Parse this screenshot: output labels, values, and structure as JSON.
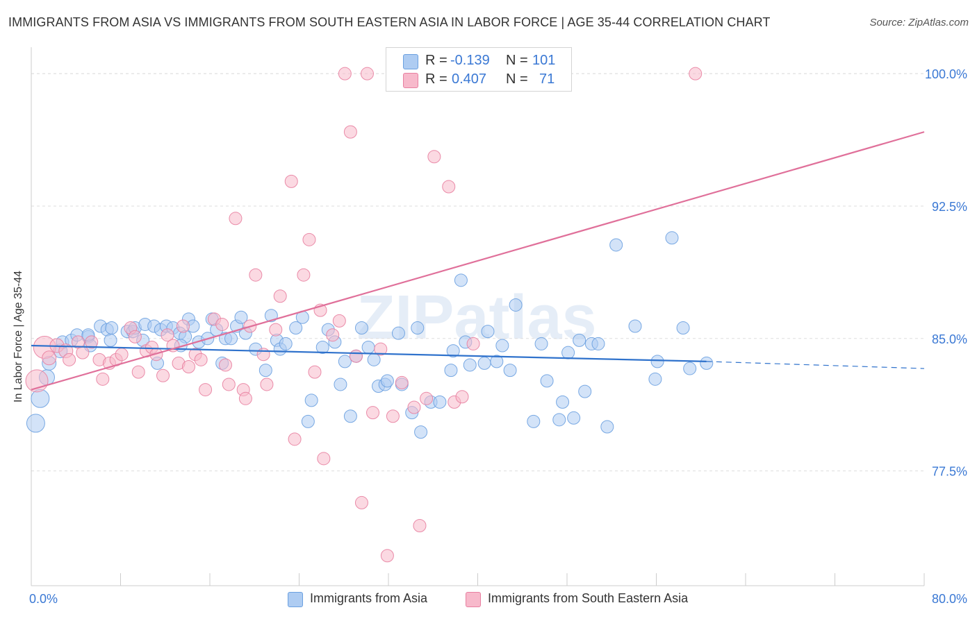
{
  "title": "IMMIGRANTS FROM ASIA VS IMMIGRANTS FROM SOUTH EASTERN ASIA IN LABOR FORCE | AGE 35-44 CORRELATION CHART",
  "source": "Source: ZipAtlas.com",
  "watermark": "ZIPatlas",
  "legend": {
    "rows": [
      {
        "r_label": "R =",
        "r_value": "-0.139",
        "n_label": "N =",
        "n_value": "101",
        "color": "#aeccf2"
      },
      {
        "r_label": "R =",
        "r_value": "0.407",
        "n_label": "N =",
        "n_value": "71",
        "color": "#f7b9cb"
      }
    ]
  },
  "chart_data": {
    "type": "scatter",
    "xlabel": "",
    "ylabel": "In Labor Force | Age 35-44",
    "xlim": [
      0,
      80
    ],
    "ylim": [
      71.0,
      101.5
    ],
    "x_tick_labels": [
      "0.0%",
      "80.0%"
    ],
    "y_ticks": [
      77.5,
      85.0,
      92.5,
      100.0
    ],
    "y_tick_labels": [
      "77.5%",
      "85.0%",
      "92.5%",
      "100.0%"
    ],
    "grid": true,
    "legend_position": "bottom",
    "series": [
      {
        "name": "Immigrants from Asia",
        "color": "#6aa0e0",
        "fill": "#aeccf2",
        "trend": {
          "x_solid": [
            0,
            60.5
          ],
          "y_solid": [
            84.6,
            83.7
          ],
          "x_dashed": [
            60.5,
            80
          ],
          "y_dashed": [
            83.7,
            83.3
          ]
        },
        "points": [
          [
            0.4,
            80.2,
            13
          ],
          [
            0.8,
            81.6,
            13
          ],
          [
            1.4,
            82.8,
            11
          ],
          [
            1.6,
            83.6,
            10
          ],
          [
            2.6,
            84.3,
            10
          ],
          [
            2.8,
            84.8,
            9
          ],
          [
            3.6,
            84.9,
            9
          ],
          [
            4.1,
            85.2,
            9
          ],
          [
            5.1,
            85.1,
            9
          ],
          [
            5.3,
            84.6,
            9
          ],
          [
            6.2,
            85.7,
            9
          ],
          [
            6.8,
            85.5,
            9
          ],
          [
            7.2,
            85.6,
            9
          ],
          [
            8.6,
            85.4,
            9
          ],
          [
            9.1,
            85.4,
            9
          ],
          [
            9.3,
            85.6,
            9
          ],
          [
            10.2,
            85.8,
            9
          ],
          [
            11.0,
            85.7,
            9
          ],
          [
            11.3,
            83.6,
            9
          ],
          [
            11.6,
            85.5,
            9
          ],
          [
            12.1,
            85.7,
            9
          ],
          [
            12.7,
            85.6,
            9
          ],
          [
            13.3,
            85.3,
            9
          ],
          [
            13.8,
            85.1,
            9
          ],
          [
            14.1,
            86.1,
            9
          ],
          [
            14.5,
            85.7,
            9
          ],
          [
            15.0,
            84.8,
            9
          ],
          [
            15.8,
            85.0,
            9
          ],
          [
            16.2,
            86.1,
            9
          ],
          [
            16.6,
            85.5,
            9
          ],
          [
            17.1,
            83.6,
            9
          ],
          [
            17.4,
            85.0,
            9
          ],
          [
            17.9,
            85.0,
            9
          ],
          [
            18.4,
            85.7,
            9
          ],
          [
            18.8,
            86.2,
            9
          ],
          [
            19.2,
            85.3,
            9
          ],
          [
            20.1,
            84.4,
            9
          ],
          [
            21.0,
            83.2,
            9
          ],
          [
            21.5,
            86.3,
            9
          ],
          [
            22.0,
            84.9,
            9
          ],
          [
            22.3,
            84.4,
            9
          ],
          [
            22.8,
            84.7,
            9
          ],
          [
            23.7,
            85.6,
            9
          ],
          [
            24.3,
            86.2,
            9
          ],
          [
            25.1,
            81.5,
            9
          ],
          [
            24.8,
            80.3,
            9
          ],
          [
            26.1,
            84.5,
            9
          ],
          [
            26.6,
            85.5,
            9
          ],
          [
            27.2,
            84.8,
            9
          ],
          [
            27.7,
            82.4,
            9
          ],
          [
            28.1,
            83.7,
            9
          ],
          [
            28.6,
            80.6,
            9
          ],
          [
            29.1,
            84.0,
            9
          ],
          [
            29.6,
            85.6,
            9
          ],
          [
            30.2,
            84.5,
            9
          ],
          [
            30.7,
            83.8,
            9
          ],
          [
            31.1,
            82.3,
            9
          ],
          [
            31.7,
            82.4,
            9
          ],
          [
            31.9,
            82.6,
            9
          ],
          [
            32.9,
            85.3,
            9
          ],
          [
            33.2,
            82.4,
            9
          ],
          [
            34.1,
            80.8,
            9
          ],
          [
            34.6,
            85.6,
            9
          ],
          [
            34.9,
            79.7,
            9
          ],
          [
            35.8,
            81.4,
            9
          ],
          [
            36.6,
            81.4,
            9
          ],
          [
            37.6,
            83.2,
            9
          ],
          [
            37.8,
            84.3,
            9
          ],
          [
            38.5,
            88.3,
            9
          ],
          [
            38.9,
            84.8,
            9
          ],
          [
            39.3,
            83.5,
            9
          ],
          [
            40.6,
            83.6,
            9
          ],
          [
            40.9,
            85.4,
            9
          ],
          [
            41.7,
            83.7,
            9
          ],
          [
            42.2,
            84.6,
            9
          ],
          [
            42.9,
            83.2,
            9
          ],
          [
            43.4,
            86.9,
            9
          ],
          [
            45.0,
            80.3,
            9
          ],
          [
            45.7,
            84.7,
            9
          ],
          [
            46.2,
            82.6,
            9
          ],
          [
            47.3,
            80.4,
            9
          ],
          [
            47.6,
            81.4,
            9
          ],
          [
            48.1,
            84.2,
            9
          ],
          [
            48.6,
            80.5,
            9
          ],
          [
            49.1,
            84.9,
            9
          ],
          [
            49.6,
            82.0,
            9
          ],
          [
            50.2,
            84.7,
            9
          ],
          [
            50.8,
            84.7,
            9
          ],
          [
            51.6,
            80.0,
            9
          ],
          [
            52.4,
            90.3,
            9
          ],
          [
            54.1,
            85.7,
            9
          ],
          [
            55.9,
            82.7,
            9
          ],
          [
            56.1,
            83.7,
            9
          ],
          [
            57.4,
            90.7,
            9
          ],
          [
            58.4,
            85.6,
            9
          ],
          [
            59.0,
            83.3,
            9
          ],
          [
            60.5,
            83.6,
            9
          ],
          [
            5.1,
            85.2,
            9
          ],
          [
            7.1,
            84.9,
            9
          ],
          [
            10.0,
            84.9,
            9
          ],
          [
            13.4,
            84.6,
            9
          ]
        ]
      },
      {
        "name": "Immigrants from South Eastern Asia",
        "color": "#e87fa0",
        "fill": "#f7b9cb",
        "trend": {
          "x_solid": [
            0,
            80
          ],
          "y_solid": [
            82.1,
            96.7
          ]
        },
        "points": [
          [
            0.5,
            82.6,
            16
          ],
          [
            1.2,
            84.5,
            16
          ],
          [
            1.6,
            83.9,
            10
          ],
          [
            2.3,
            84.6,
            10
          ],
          [
            3.1,
            84.3,
            10
          ],
          [
            3.4,
            83.8,
            9
          ],
          [
            4.2,
            84.8,
            9
          ],
          [
            4.6,
            84.2,
            9
          ],
          [
            5.4,
            84.8,
            9
          ],
          [
            6.1,
            83.8,
            9
          ],
          [
            6.4,
            82.7,
            9
          ],
          [
            7.0,
            83.6,
            9
          ],
          [
            7.6,
            83.8,
            9
          ],
          [
            8.1,
            84.1,
            9
          ],
          [
            8.9,
            85.6,
            9
          ],
          [
            9.3,
            85.1,
            9
          ],
          [
            9.6,
            83.1,
            9
          ],
          [
            10.3,
            84.3,
            9
          ],
          [
            10.8,
            84.5,
            9
          ],
          [
            11.2,
            84.1,
            9
          ],
          [
            11.8,
            82.9,
            9
          ],
          [
            12.2,
            85.2,
            9
          ],
          [
            12.7,
            84.6,
            9
          ],
          [
            13.2,
            83.6,
            9
          ],
          [
            13.6,
            85.7,
            9
          ],
          [
            14.1,
            83.4,
            9
          ],
          [
            14.7,
            84.1,
            9
          ],
          [
            15.2,
            83.8,
            9
          ],
          [
            15.6,
            82.1,
            9
          ],
          [
            16.4,
            86.1,
            9
          ],
          [
            17.1,
            85.8,
            9
          ],
          [
            17.4,
            83.5,
            9
          ],
          [
            17.7,
            82.4,
            9
          ],
          [
            18.3,
            91.8,
            9
          ],
          [
            19.0,
            82.1,
            9
          ],
          [
            19.2,
            81.6,
            9
          ],
          [
            19.6,
            85.7,
            9
          ],
          [
            20.1,
            88.6,
            9
          ],
          [
            20.8,
            84.1,
            9
          ],
          [
            21.1,
            82.4,
            9
          ],
          [
            21.9,
            85.5,
            9
          ],
          [
            22.3,
            87.4,
            9
          ],
          [
            23.3,
            93.9,
            9
          ],
          [
            23.6,
            79.3,
            9
          ],
          [
            24.4,
            88.6,
            9
          ],
          [
            24.9,
            90.6,
            9
          ],
          [
            25.4,
            83.1,
            9
          ],
          [
            25.9,
            86.6,
            9
          ],
          [
            26.2,
            78.2,
            9
          ],
          [
            27.0,
            85.2,
            9
          ],
          [
            27.6,
            86.0,
            9
          ],
          [
            28.1,
            100.0,
            9
          ],
          [
            28.6,
            96.7,
            9
          ],
          [
            29.1,
            84.0,
            9
          ],
          [
            29.6,
            75.7,
            9
          ],
          [
            30.1,
            100.0,
            9
          ],
          [
            30.6,
            80.8,
            9
          ],
          [
            31.3,
            84.4,
            9
          ],
          [
            31.9,
            72.7,
            9
          ],
          [
            32.4,
            80.6,
            9
          ],
          [
            33.2,
            82.5,
            9
          ],
          [
            34.3,
            81.1,
            9
          ],
          [
            34.8,
            74.4,
            9
          ],
          [
            35.4,
            81.6,
            9
          ],
          [
            36.1,
            95.3,
            9
          ],
          [
            37.4,
            93.6,
            9
          ],
          [
            37.9,
            81.4,
            9
          ],
          [
            38.6,
            81.7,
            9
          ],
          [
            39.6,
            84.7,
            9
          ],
          [
            47.0,
            100.0,
            9
          ],
          [
            59.5,
            100.0,
            9
          ]
        ]
      }
    ]
  }
}
